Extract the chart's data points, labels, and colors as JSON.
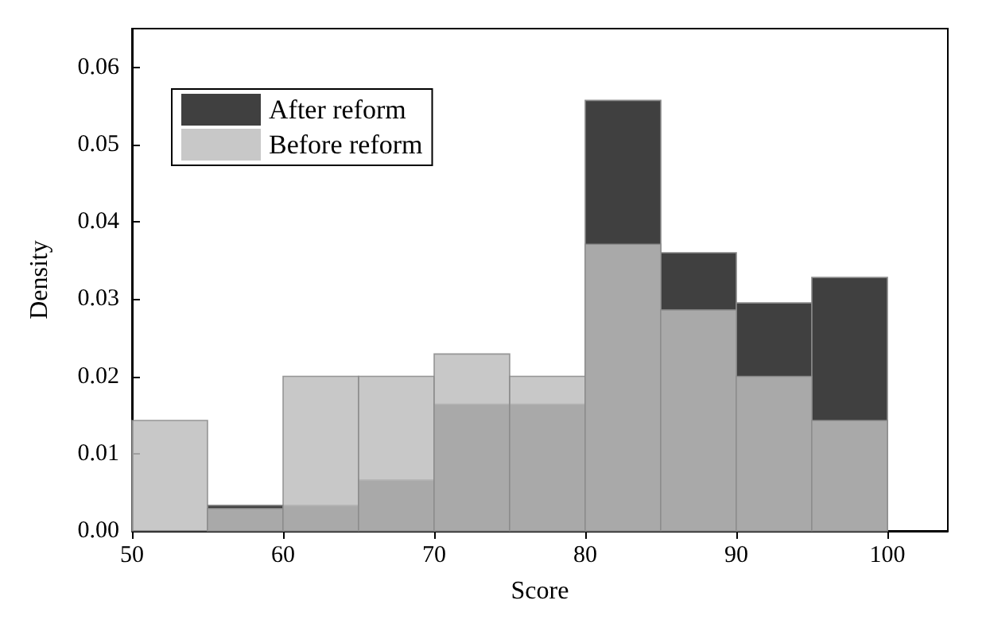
{
  "chart_data": {
    "type": "histogram",
    "xlabel": "Score",
    "ylabel": "Density",
    "bins": [
      50,
      55,
      60,
      65,
      70,
      75,
      80,
      85,
      90,
      95,
      100
    ],
    "series": [
      {
        "name": "After reform",
        "color": "#404040",
        "values": [
          0,
          0.0033,
          0.0033,
          0.0066,
          0.0164,
          0.0164,
          0.0557,
          0.036,
          0.0295,
          0.0328
        ]
      },
      {
        "name": "Before reform",
        "color": "#bebebe",
        "values": [
          0.0143,
          0.0029,
          0.02,
          0.02,
          0.0229,
          0.02,
          0.0371,
          0.0286,
          0.02,
          0.0143
        ]
      }
    ],
    "xlim": [
      50,
      104
    ],
    "xticks": [
      50,
      60,
      70,
      80,
      90,
      100
    ],
    "ylim": [
      0,
      0.065
    ],
    "yticks": [
      {
        "value": 0,
        "label": "0.00"
      },
      0.01,
      0.02,
      0.03,
      0.04,
      0.05,
      0.06
    ],
    "grid": false,
    "legend": "top left"
  }
}
